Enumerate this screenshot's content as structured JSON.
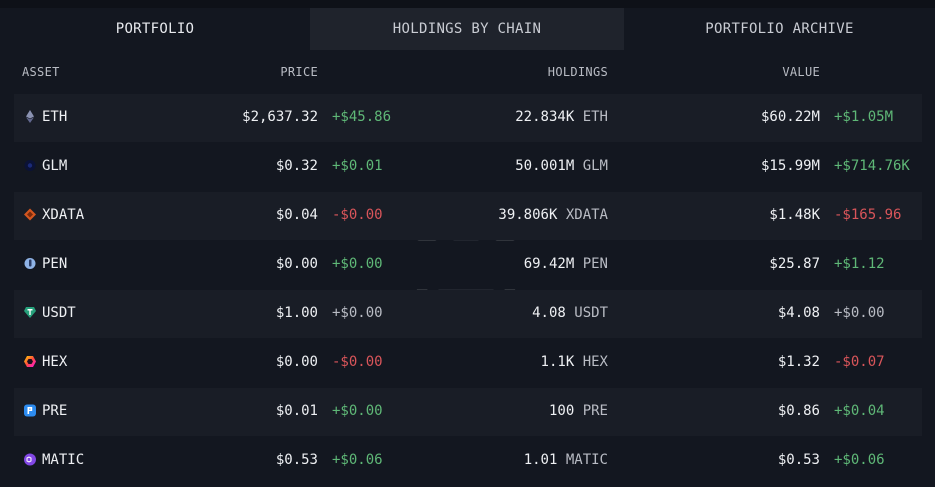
{
  "tabs": [
    {
      "label": "PORTFOLIO"
    },
    {
      "label": "HOLDINGS BY CHAIN"
    },
    {
      "label": "PORTFOLIO ARCHIVE"
    }
  ],
  "columns": {
    "asset": "ASSET",
    "price": "PRICE",
    "holdings": "HOLDINGS",
    "value": "VALUE"
  },
  "rows": [
    {
      "symbol": "ETH",
      "icon": "ethereum-icon",
      "price": "$2,637.32",
      "price_change": "+$45.86",
      "holdings": "22.834K",
      "unit": "ETH",
      "value": "$60.22M",
      "value_change": "+$1.05M"
    },
    {
      "symbol": "GLM",
      "icon": "golem-icon",
      "price": "$0.32",
      "price_change": "+$0.01",
      "holdings": "50.001M",
      "unit": "GLM",
      "value": "$15.99M",
      "value_change": "+$714.76K"
    },
    {
      "symbol": "XDATA",
      "icon": "xdata-icon",
      "price": "$0.04",
      "price_change": "-$0.00",
      "holdings": "39.806K",
      "unit": "XDATA",
      "value": "$1.48K",
      "value_change": "-$165.96"
    },
    {
      "symbol": "PEN",
      "icon": "pen-icon",
      "price": "$0.00",
      "price_change": "+$0.00",
      "holdings": "69.42M",
      "unit": "PEN",
      "value": "$25.87",
      "value_change": "+$1.12"
    },
    {
      "symbol": "USDT",
      "icon": "tether-icon",
      "price": "$1.00",
      "price_change": "+$0.00",
      "holdings": "4.08",
      "unit": "USDT",
      "value": "$4.08",
      "value_change": "+$0.00"
    },
    {
      "symbol": "HEX",
      "icon": "hex-icon",
      "price": "$0.00",
      "price_change": "-$0.00",
      "holdings": "1.1K",
      "unit": "HEX",
      "value": "$1.32",
      "value_change": "-$0.07"
    },
    {
      "symbol": "PRE",
      "icon": "presearch-icon",
      "price": "$0.01",
      "price_change": "+$0.00",
      "holdings": "100",
      "unit": "PRE",
      "value": "$0.86",
      "value_change": "+$0.04"
    },
    {
      "symbol": "MATIC",
      "icon": "polygon-icon",
      "price": "$0.53",
      "price_change": "+$0.06",
      "holdings": "1.01",
      "unit": "MATIC",
      "value": "$0.53",
      "value_change": "+$0.06"
    }
  ],
  "colors": {
    "positive": "#5fb877",
    "negative": "#d9555a",
    "neutral": "#b9bcc4"
  }
}
